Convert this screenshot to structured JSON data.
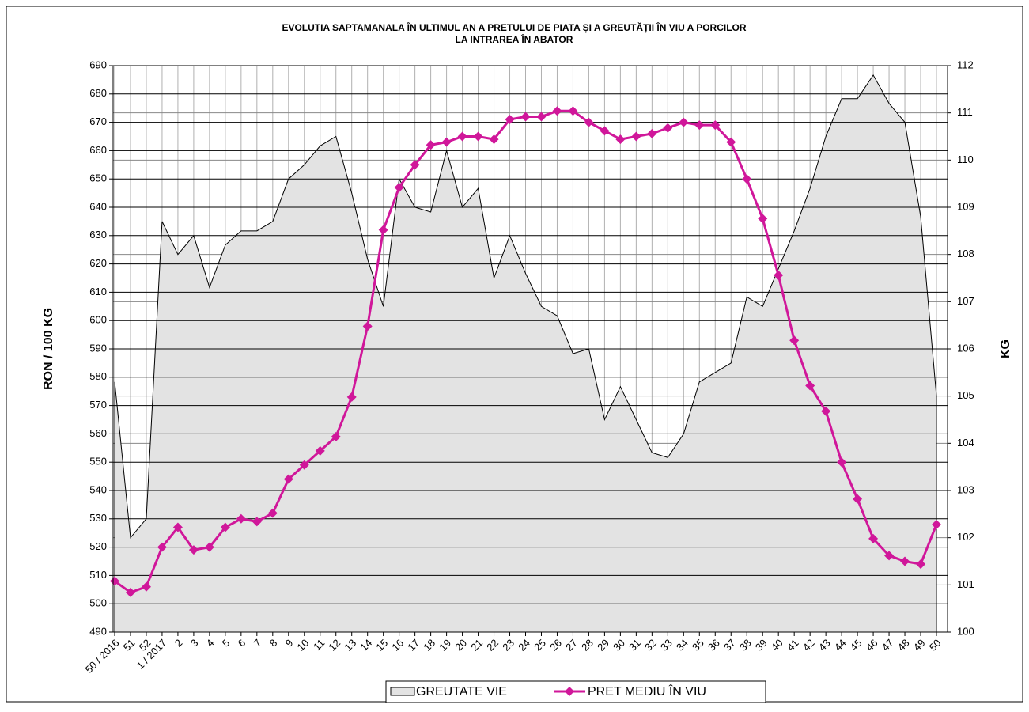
{
  "chart_data": {
    "type": "line",
    "title": [
      "EVOLUTIA SAPTAMANALA ÎN ULTIMUL AN A PRETULUI  DE PIATA ȘI A GREUTĂȚII ÎN VIU A PORCILOR",
      "LA INTRAREA ÎN ABATOR"
    ],
    "ylabel": "RON / 100 KG",
    "y2label": "KG",
    "categories": [
      "50 / 2016",
      "51",
      "52",
      "1 / 2017",
      "2",
      "3",
      "4",
      "5",
      "6",
      "7",
      "8",
      "9",
      "10",
      "11",
      "12",
      "13",
      "14",
      "15",
      "16",
      "17",
      "18",
      "19",
      "20",
      "21",
      "22",
      "23",
      "24",
      "25",
      "26",
      "27",
      "28",
      "29",
      "30",
      "31",
      "32",
      "33",
      "34",
      "35",
      "36",
      "37",
      "38",
      "39",
      "40",
      "41",
      "42",
      "43",
      "44",
      "45",
      "46",
      "47",
      "48",
      "49",
      "50"
    ],
    "series": [
      {
        "name": "GREUTATE VIE",
        "type": "area",
        "axis": "y2",
        "color": "#e3e3e3",
        "values": [
          105.3,
          102.0,
          102.4,
          108.7,
          108.0,
          108.4,
          107.3,
          108.2,
          108.5,
          108.5,
          108.7,
          109.6,
          109.9,
          110.3,
          110.5,
          109.3,
          107.9,
          106.9,
          109.6,
          109.0,
          108.9,
          110.2,
          109.0,
          109.4,
          107.5,
          108.4,
          107.6,
          106.9,
          106.7,
          105.9,
          106.0,
          104.5,
          105.2,
          104.5,
          103.8,
          103.7,
          104.2,
          105.3,
          105.5,
          105.7,
          107.1,
          106.9,
          107.7,
          108.5,
          109.4,
          110.5,
          111.3,
          111.3,
          111.8,
          111.2,
          110.8,
          108.8,
          105.0
        ]
      },
      {
        "name": "PRET MEDIU ÎN VIU",
        "type": "line",
        "color": "#d0179a",
        "values": [
          508,
          504,
          506,
          520,
          527,
          519,
          520,
          527,
          530,
          529,
          532,
          544,
          549,
          554,
          559,
          573,
          598,
          632,
          647,
          655,
          662,
          663,
          665,
          665,
          664,
          671,
          672,
          672,
          674,
          674,
          670,
          667,
          664,
          665,
          666,
          668,
          670,
          669,
          669,
          663,
          650,
          636,
          616,
          593,
          577,
          568,
          550,
          537,
          523,
          517,
          515,
          514,
          528
        ]
      }
    ],
    "ylim": [
      490,
      690
    ],
    "yticks": [
      490,
      500,
      510,
      520,
      530,
      540,
      550,
      560,
      570,
      580,
      590,
      600,
      610,
      620,
      630,
      640,
      650,
      660,
      670,
      680,
      690
    ],
    "y2lim": [
      100,
      112
    ],
    "y2ticks": [
      100,
      101,
      102,
      103,
      104,
      105,
      106,
      107,
      108,
      109,
      110,
      111,
      112
    ],
    "grid": true
  }
}
